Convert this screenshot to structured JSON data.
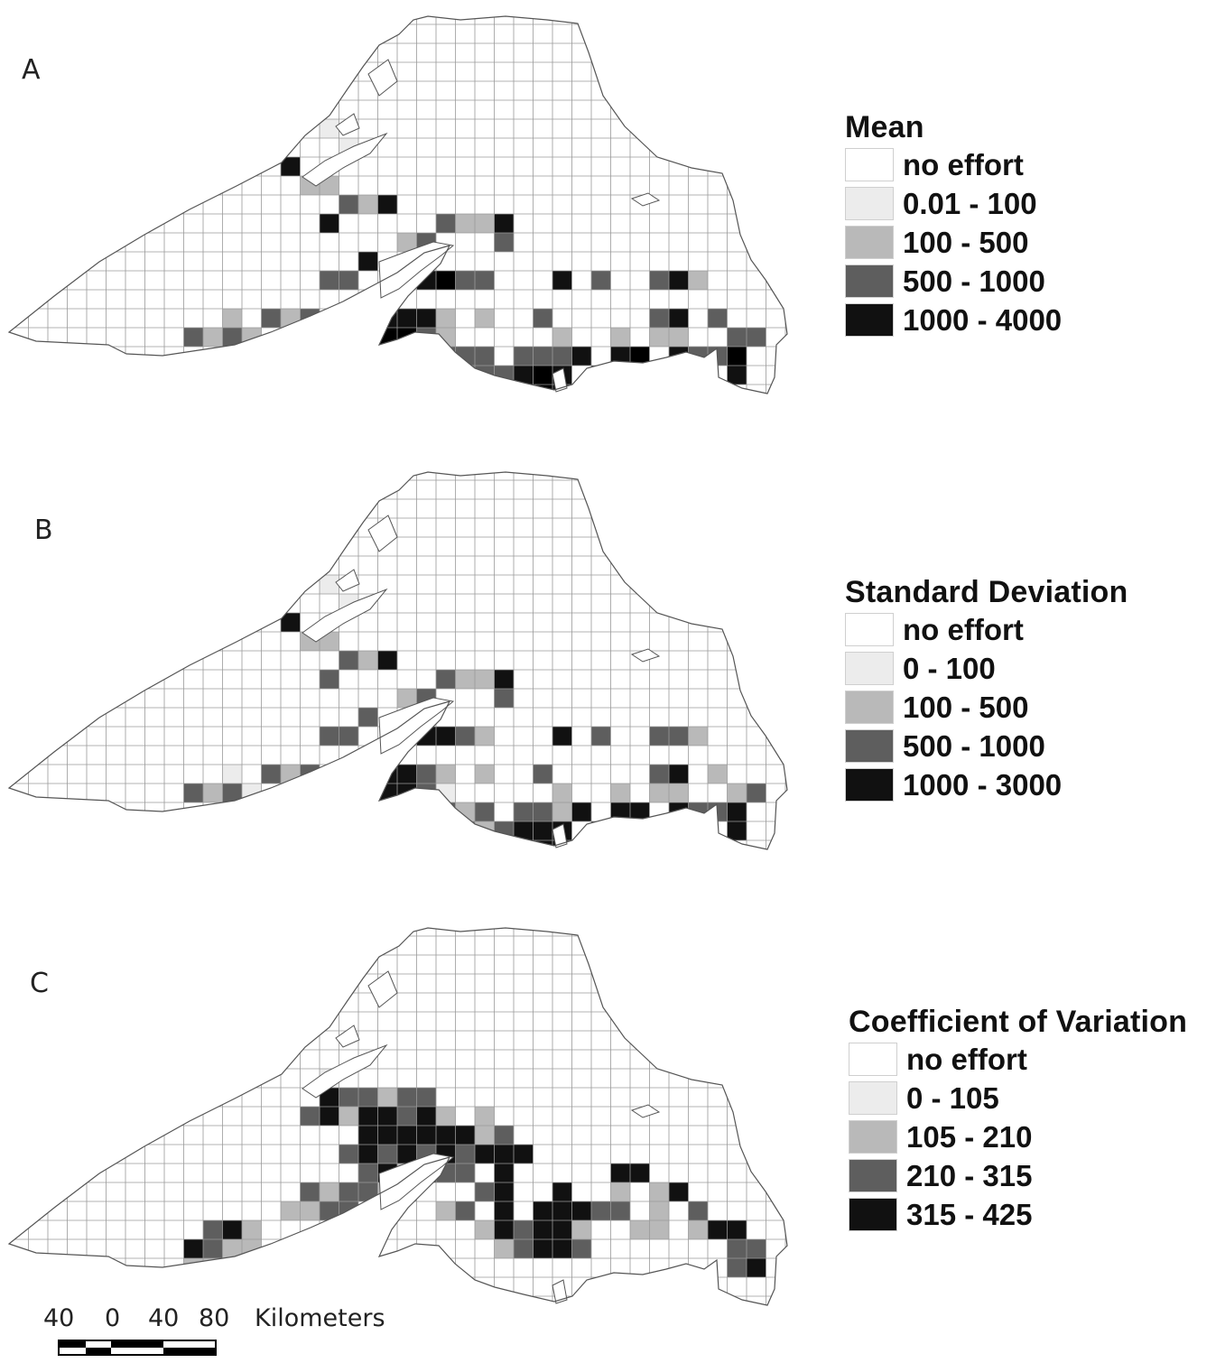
{
  "panels": [
    {
      "id": "A",
      "letter": "A",
      "legend_title": "Mean",
      "legend": [
        {
          "label": "no effort",
          "color": "#ffffff"
        },
        {
          "label": "0.01 - 100",
          "color": "#ececec"
        },
        {
          "label": "100 - 500",
          "color": "#b9b9b9"
        },
        {
          "label": "500 - 1000",
          "color": "#5e5e5e"
        },
        {
          "label": "1000 - 4000",
          "color": "#111111"
        }
      ]
    },
    {
      "id": "B",
      "letter": "B",
      "legend_title": "Standard Deviation",
      "legend": [
        {
          "label": "no effort",
          "color": "#ffffff"
        },
        {
          "label": "0 - 100",
          "color": "#ececec"
        },
        {
          "label": "100 - 500",
          "color": "#b9b9b9"
        },
        {
          "label": "500 - 1000",
          "color": "#5e5e5e"
        },
        {
          "label": "1000 - 3000",
          "color": "#111111"
        }
      ]
    },
    {
      "id": "C",
      "letter": "C",
      "legend_title": "Coefficient of Variation",
      "legend": [
        {
          "label": "no effort",
          "color": "#ffffff"
        },
        {
          "label": "0 - 105",
          "color": "#ececec"
        },
        {
          "label": "105 - 210",
          "color": "#b9b9b9"
        },
        {
          "label": "210 - 315",
          "color": "#5e5e5e"
        },
        {
          "label": "315 - 425",
          "color": "#111111"
        }
      ]
    }
  ],
  "scale_bar": {
    "ticks": [
      "40",
      "0",
      "40",
      "80"
    ],
    "unit": "Kilometers"
  }
}
